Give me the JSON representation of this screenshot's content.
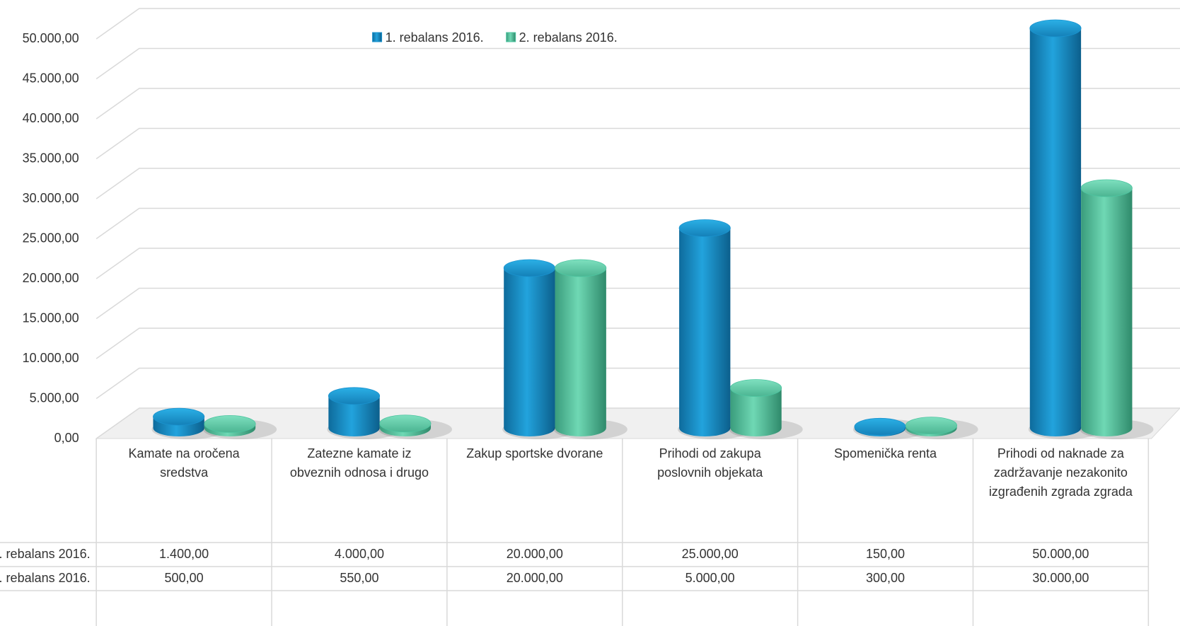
{
  "chart_data": {
    "type": "bar3d",
    "categories": [
      "Kamate na oročena sredstva",
      "Zatezne kamate iz obveznih odnosa i drugo",
      "Zakup sportske dvorane",
      "Prihodi od zakupa poslovnih objekata",
      "Spomenička renta",
      "Prihodi od naknade za zadržavanje nezakonito izgrađenih zgrada zgrada"
    ],
    "series": [
      {
        "name": "1. rebalans 2016.",
        "color": "#1a93cf",
        "values": [
          1400,
          4000,
          20000,
          25000,
          150,
          50000
        ],
        "value_labels": [
          "1.400,00",
          "4.000,00",
          "20.000,00",
          "25.000,00",
          "150,00",
          "50.000,00"
        ]
      },
      {
        "name": "2. rebalans 2016.",
        "color": "#4cc4a0",
        "values": [
          500,
          550,
          20000,
          5000,
          300,
          30000
        ],
        "value_labels": [
          "500,00",
          "550,00",
          "20.000,00",
          "5.000,00",
          "300,00",
          "30.000,00"
        ]
      }
    ],
    "ylim": [
      0,
      50000
    ],
    "yticks": [
      {
        "value": 0,
        "label": "0,00"
      },
      {
        "value": 5000,
        "label": "5.000,00"
      },
      {
        "value": 10000,
        "label": "10.000,00"
      },
      {
        "value": 15000,
        "label": "15.000,00"
      },
      {
        "value": 20000,
        "label": "20.000,00"
      },
      {
        "value": 25000,
        "label": "25.000,00"
      },
      {
        "value": 30000,
        "label": "30.000,00"
      },
      {
        "value": 35000,
        "label": "35.000,00"
      },
      {
        "value": 40000,
        "label": "40.000,00"
      },
      {
        "value": 45000,
        "label": "45.000,00"
      },
      {
        "value": 50000,
        "label": "50.000,00"
      }
    ],
    "grid": true,
    "legend": "top",
    "data_table": true
  }
}
